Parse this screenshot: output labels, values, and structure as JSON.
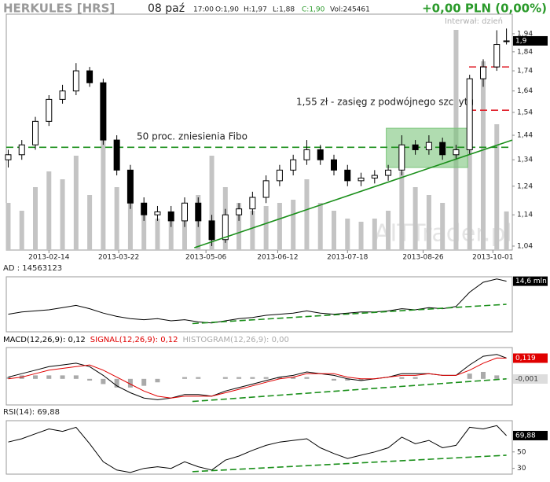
{
  "chart_data": [
    {
      "type": "candlestick",
      "title": "HERKULES [HRS]",
      "date": "08 paź",
      "quote": [
        "17:00",
        "O:1,90",
        "H:1,97",
        "L:1,88",
        "C:1,90",
        "Vol:245461"
      ],
      "change": "+0,00 PLN (0,00%)",
      "interval": "Interwał: dzień",
      "watermark": "AITTrader.pl",
      "x": [
        "2013-01-24",
        "2013-01-31",
        "2013-02-07",
        "2013-02-14",
        "2013-02-21",
        "2013-02-28",
        "2013-03-07",
        "2013-03-14",
        "2013-03-21",
        "2013-03-28",
        "2013-04-04",
        "2013-04-11",
        "2013-04-18",
        "2013-04-25",
        "2013-05-02",
        "2013-05-09",
        "2013-05-16",
        "2013-05-23",
        "2013-05-30",
        "2013-06-06",
        "2013-06-13",
        "2013-06-20",
        "2013-06-27",
        "2013-07-04",
        "2013-07-11",
        "2013-07-18",
        "2013-07-25",
        "2013-08-01",
        "2013-08-08",
        "2013-08-15",
        "2013-08-22",
        "2013-08-29",
        "2013-09-05",
        "2013-09-12",
        "2013-09-19",
        "2013-09-26",
        "2013-10-03",
        "2013-10-08"
      ],
      "open": [
        1.34,
        1.36,
        1.4,
        1.5,
        1.6,
        1.64,
        1.74,
        1.68,
        1.42,
        1.3,
        1.18,
        1.14,
        1.15,
        1.12,
        1.18,
        1.12,
        1.06,
        1.14,
        1.16,
        1.2,
        1.26,
        1.3,
        1.34,
        1.38,
        1.34,
        1.3,
        1.26,
        1.27,
        1.28,
        1.3,
        1.4,
        1.38,
        1.41,
        1.36,
        1.38,
        1.7,
        1.76,
        1.9
      ],
      "high": [
        1.38,
        1.42,
        1.52,
        1.62,
        1.67,
        1.78,
        1.76,
        1.7,
        1.44,
        1.32,
        1.2,
        1.17,
        1.17,
        1.2,
        1.2,
        1.14,
        1.16,
        1.18,
        1.22,
        1.28,
        1.32,
        1.36,
        1.42,
        1.4,
        1.36,
        1.32,
        1.29,
        1.3,
        1.32,
        1.44,
        1.42,
        1.44,
        1.43,
        1.4,
        1.72,
        1.8,
        1.96,
        1.97
      ],
      "low": [
        1.31,
        1.34,
        1.38,
        1.48,
        1.58,
        1.62,
        1.66,
        1.4,
        1.28,
        1.16,
        1.12,
        1.12,
        1.1,
        1.1,
        1.1,
        1.04,
        1.05,
        1.12,
        1.14,
        1.18,
        1.24,
        1.28,
        1.32,
        1.32,
        1.28,
        1.24,
        1.24,
        1.25,
        1.26,
        1.28,
        1.36,
        1.36,
        1.34,
        1.34,
        1.36,
        1.66,
        1.74,
        1.88
      ],
      "close": [
        1.36,
        1.4,
        1.5,
        1.6,
        1.64,
        1.74,
        1.68,
        1.42,
        1.3,
        1.18,
        1.14,
        1.15,
        1.12,
        1.18,
        1.12,
        1.06,
        1.14,
        1.16,
        1.2,
        1.26,
        1.3,
        1.34,
        1.38,
        1.34,
        1.3,
        1.26,
        1.27,
        1.28,
        1.3,
        1.4,
        1.38,
        1.41,
        1.36,
        1.38,
        1.7,
        1.76,
        1.88,
        1.9
      ],
      "volume": [
        300000,
        250000,
        400000,
        500000,
        450000,
        600000,
        350000,
        700000,
        400000,
        300000,
        250000,
        200000,
        220000,
        300000,
        350000,
        600000,
        400000,
        300000,
        250000,
        280000,
        300000,
        320000,
        450000,
        300000,
        250000,
        200000,
        180000,
        200000,
        250000,
        500000,
        400000,
        350000,
        300000,
        1400000,
        900000,
        1200000,
        800000,
        245461
      ],
      "volume_ylim": [
        0,
        1500000
      ],
      "volume_color": "#c4c4c4",
      "log": true,
      "ylim": [
        1.028,
        2.055
      ],
      "yticks": [
        {
          "value": 1.04,
          "label": "1,04"
        },
        {
          "value": 1.14,
          "label": "1,14"
        },
        {
          "value": 1.24,
          "label": "1,24"
        },
        {
          "value": 1.34,
          "label": "1,34"
        },
        {
          "value": 1.44,
          "label": "1,44"
        },
        {
          "value": 1.54,
          "label": "1,54"
        },
        {
          "value": 1.64,
          "label": "1,64"
        },
        {
          "value": 1.74,
          "label": "1,74"
        },
        {
          "value": 1.84,
          "label": "1,84"
        },
        {
          "value": 1.94,
          "label": "1,94"
        }
      ],
      "xlim": [
        "2013-01-23",
        "2013-10-11"
      ],
      "xticks": [
        "2013-02-14",
        "2013-03-22",
        "2013-05-06",
        "2013-06-12",
        "2013-07-18",
        "2013-08-26",
        "2013-10-01"
      ],
      "last_labels": [
        {
          "value": 1.9,
          "label": "1,9",
          "bg": "#000000",
          "fg": "#ffffff"
        }
      ],
      "annotations": [
        "50 proc. zniesienia Fibo",
        "1,55 zł - zasięg z podwójnego szczytu"
      ],
      "hlines": [
        {
          "value": 1.39,
          "color": "#1a8f1a"
        },
        {
          "value": 1.76,
          "color": "#e0202a"
        },
        {
          "value": 1.55,
          "color": "#e0202a"
        }
      ],
      "trendline": {
        "x": [
          "2013-04-30",
          "2013-10-11"
        ],
        "y": [
          1.035,
          1.42
        ],
        "color": "#1a8f1a"
      },
      "box": {
        "x0": "2013-08-07",
        "x1": "2013-09-18",
        "y0": 1.31,
        "y1": 1.47,
        "color": "#7cc57c"
      }
    },
    {
      "type": "line",
      "title": "AD : 14563123",
      "series": [
        {
          "color": "#000000",
          "values": [
            11.6,
            11.8,
            11.9,
            12.0,
            12.2,
            12.4,
            12.1,
            11.7,
            11.4,
            11.2,
            11.1,
            11.2,
            11.0,
            11.1,
            10.9,
            10.8,
            11.0,
            11.2,
            11.3,
            11.5,
            11.6,
            11.7,
            11.9,
            11.7,
            11.6,
            11.7,
            11.8,
            11.8,
            11.9,
            12.1,
            12.0,
            12.2,
            12.1,
            12.3,
            13.6,
            14.5,
            14.8,
            14.6
          ]
        }
      ],
      "ylim": [
        10.0,
        15.0
      ],
      "last_labels": [
        {
          "value": 14.6,
          "label": "14,6 mln",
          "bg": "#000000",
          "fg": "#ffffff"
        }
      ],
      "trendline": {
        "x": [
          "2013-04-29",
          "2013-10-08"
        ],
        "y": [
          10.75,
          12.5
        ],
        "color": "#1a8f1a"
      }
    },
    {
      "type": "line",
      "series": [
        {
          "name": "MACD(12,26,9): 0,12",
          "color": "#000000",
          "values": [
            0.01,
            0.03,
            0.05,
            0.07,
            0.08,
            0.09,
            0.07,
            0.02,
            -0.04,
            -0.08,
            -0.11,
            -0.12,
            -0.11,
            -0.09,
            -0.09,
            -0.1,
            -0.07,
            -0.05,
            -0.03,
            -0.01,
            0.01,
            0.02,
            0.04,
            0.03,
            0.02,
            0.0,
            -0.01,
            0.0,
            0.01,
            0.03,
            0.03,
            0.03,
            0.02,
            0.02,
            0.08,
            0.13,
            0.14,
            0.12
          ]
        },
        {
          "name": "SIGNAL(12,26,9): 0,12",
          "color": "#e00000",
          "values": [
            0.0,
            0.01,
            0.03,
            0.05,
            0.06,
            0.07,
            0.08,
            0.05,
            0.01,
            -0.03,
            -0.07,
            -0.1,
            -0.11,
            -0.1,
            -0.1,
            -0.1,
            -0.08,
            -0.06,
            -0.04,
            -0.02,
            0.0,
            0.01,
            0.03,
            0.03,
            0.03,
            0.01,
            0.0,
            0.0,
            0.01,
            0.02,
            0.02,
            0.03,
            0.02,
            0.02,
            0.05,
            0.09,
            0.12,
            0.119
          ]
        },
        {
          "name": "HISTOGRAM(12,26,9): 0,00",
          "color": "#aaaaaa",
          "type": "bar",
          "values": [
            0.01,
            0.02,
            0.02,
            0.02,
            0.02,
            0.02,
            -0.01,
            -0.03,
            -0.05,
            -0.05,
            -0.04,
            -0.02,
            0.0,
            0.01,
            0.01,
            0.0,
            0.01,
            0.01,
            0.01,
            0.01,
            0.01,
            0.01,
            0.01,
            0.0,
            -0.01,
            -0.01,
            -0.01,
            0.0,
            0.0,
            0.01,
            0.01,
            0.0,
            0.0,
            0.0,
            0.03,
            0.04,
            0.02,
            -0.001
          ]
        }
      ],
      "ylim": [
        -0.15,
        0.18
      ],
      "last_labels": [
        {
          "value": 0.119,
          "label": "0,119",
          "bg": "#e00000",
          "fg": "#ffffff"
        },
        {
          "value": -0.001,
          "label": "-0,001",
          "bg": "#dddddd",
          "fg": "#333333"
        }
      ],
      "trendline": {
        "x": [
          "2013-04-29",
          "2013-10-08"
        ],
        "y": [
          -0.13,
          0.0
        ],
        "color": "#1a8f1a"
      }
    },
    {
      "type": "line",
      "title": "RSI(14): 69,88",
      "series": [
        {
          "color": "#000000",
          "values": [
            62,
            66,
            72,
            78,
            75,
            80,
            60,
            38,
            28,
            25,
            30,
            32,
            30,
            38,
            32,
            28,
            40,
            45,
            52,
            58,
            62,
            64,
            66,
            55,
            48,
            42,
            46,
            50,
            55,
            68,
            60,
            64,
            55,
            58,
            80,
            78,
            82,
            69.88
          ]
        }
      ],
      "ylim": [
        23,
        88
      ],
      "yticks": [
        30,
        50
      ],
      "last_labels": [
        {
          "value": 69.88,
          "label": "69,88",
          "bg": "#000000",
          "fg": "#ffffff"
        }
      ],
      "trendline": {
        "x": [
          "2013-04-29",
          "2013-10-08"
        ],
        "y": [
          26,
          46
        ],
        "color": "#1a8f1a"
      }
    }
  ]
}
